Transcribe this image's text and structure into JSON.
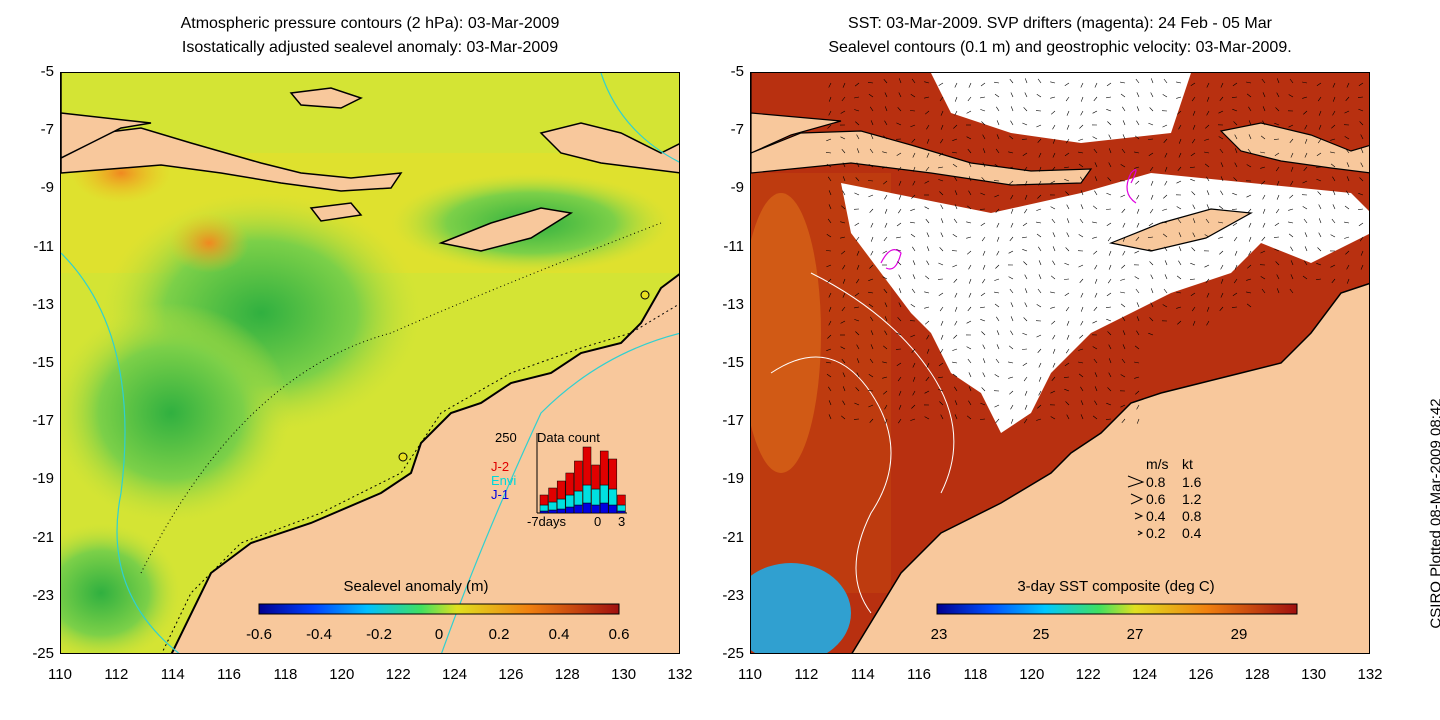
{
  "left_panel": {
    "title_line1": "Atmospheric pressure contours (2 hPa): 03-Mar-2009",
    "title_line2": "Isostatically adjusted sealevel anomaly: 03-Mar-2009",
    "colorbar_label": "Sealevel anomaly (m)",
    "colorbar_ticks": [
      "-0.6",
      "-0.4",
      "-0.2",
      "0",
      "0.2",
      "0.4",
      "0.6"
    ],
    "inset": {
      "max_label": "250",
      "title": "Data count",
      "legend": [
        {
          "label": "J-2",
          "color": "#e00000"
        },
        {
          "label": "Envi",
          "color": "#00e0e0"
        },
        {
          "label": "J-1",
          "color": "#0000e0"
        }
      ],
      "x_labels": [
        "-7days",
        "0",
        "3"
      ]
    }
  },
  "right_panel": {
    "title_line1": "SST: 03-Mar-2009. SVP drifters (magenta): 24 Feb - 05 Mar",
    "title_line2": "Sealevel contours (0.1 m) and geostrophic velocity: 03-Mar-2009.",
    "colorbar_label": "3-day SST composite (deg C)",
    "colorbar_ticks": [
      "23",
      "25",
      "27",
      "29"
    ],
    "velocity_legend": {
      "header_ms": "m/s",
      "header_kt": "kt",
      "rows": [
        {
          "ms": "0.8",
          "kt": "1.6"
        },
        {
          "ms": "0.6",
          "kt": "1.2"
        },
        {
          "ms": "0.4",
          "kt": "0.8"
        },
        {
          "ms": "0.2",
          "kt": "0.4"
        }
      ]
    }
  },
  "axes": {
    "lat_ticks": [
      "-5",
      "-7",
      "-9",
      "-11",
      "-13",
      "-15",
      "-17",
      "-19",
      "-21",
      "-23",
      "-25"
    ],
    "lon_ticks": [
      "110",
      "112",
      "114",
      "116",
      "118",
      "120",
      "122",
      "124",
      "126",
      "128",
      "130",
      "132"
    ]
  },
  "credit": "CSIRO Plotted 08-Mar-2009 08:42",
  "colors": {
    "land": "#f8c89c",
    "anomaly_base": "#d8e830",
    "anomaly_low": "#4cc84c",
    "sst_warm": "#a02808",
    "sst_mid": "#c85818",
    "cloud": "#ffffff"
  }
}
